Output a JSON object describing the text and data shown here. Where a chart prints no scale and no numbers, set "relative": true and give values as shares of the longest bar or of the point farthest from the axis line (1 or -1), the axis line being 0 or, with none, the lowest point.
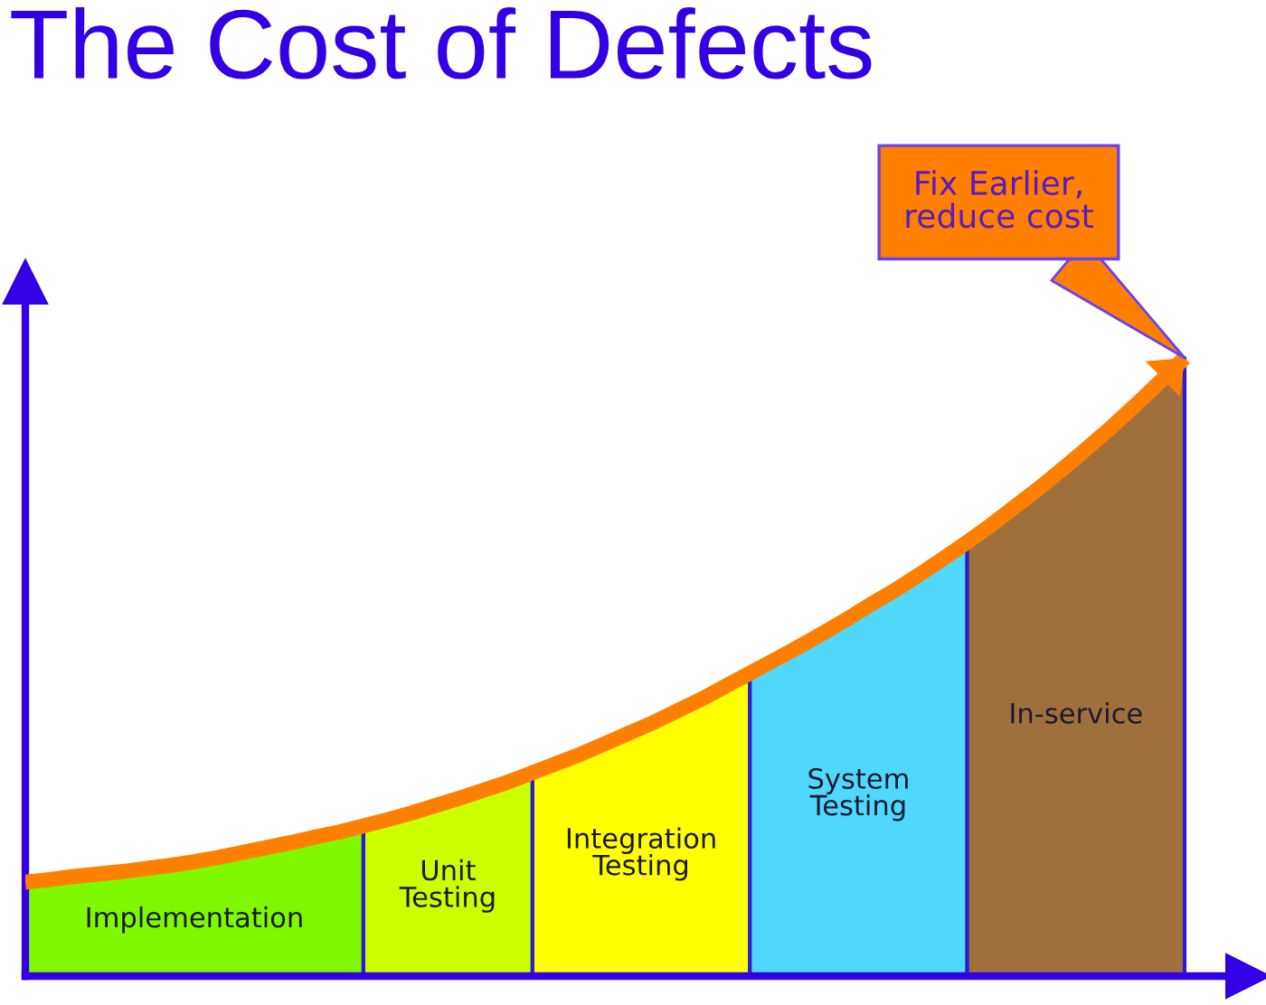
{
  "chart_data": {
    "type": "area",
    "title": "The Cost of Defects",
    "relative": true,
    "categories": [
      null,
      null,
      null,
      null,
      null,
      null,
      null,
      null,
      null,
      null,
      null,
      null,
      null,
      null,
      null,
      null,
      null,
      null,
      null,
      null,
      null,
      null,
      null,
      null,
      null,
      null,
      null,
      null,
      null,
      null,
      null,
      null,
      null,
      null,
      null,
      null,
      null,
      null,
      null,
      null,
      null,
      null,
      null,
      null,
      null,
      null,
      null,
      null,
      null
    ],
    "series": [
      {
        "name": "Implementation",
        "color": "#80f800",
        "values": [
          0.152,
          0.156,
          0.161,
          0.165,
          0.169,
          0.174,
          0.179,
          0.185,
          0.192,
          0.2,
          0.208,
          0.216,
          0.225,
          0.233,
          0.243,
          null,
          null,
          null,
          null,
          null,
          null,
          null,
          null,
          null,
          null,
          null,
          null,
          null,
          null,
          null,
          null,
          null,
          null,
          null,
          null,
          null,
          null,
          null,
          null,
          null,
          null,
          null,
          null,
          null,
          null,
          null,
          null,
          null,
          null
        ]
      },
      {
        "name": "Unit\nTesting",
        "color": "#ccff00",
        "values": [
          null,
          null,
          null,
          null,
          null,
          null,
          null,
          null,
          null,
          null,
          null,
          null,
          null,
          null,
          0.243,
          0.253,
          0.264,
          0.276,
          0.288,
          0.301,
          0.314,
          0.329,
          null,
          null,
          null,
          null,
          null,
          null,
          null,
          null,
          null,
          null,
          null,
          null,
          null,
          null,
          null,
          null,
          null,
          null,
          null,
          null,
          null,
          null,
          null,
          null,
          null,
          null,
          null
        ]
      },
      {
        "name": "Integration\nTesting",
        "color": "#ffff00",
        "values": [
          null,
          null,
          null,
          null,
          null,
          null,
          null,
          null,
          null,
          null,
          null,
          null,
          null,
          null,
          null,
          null,
          null,
          null,
          null,
          null,
          null,
          0.329,
          0.344,
          0.359,
          0.376,
          0.393,
          0.41,
          0.429,
          0.448,
          0.469,
          0.49,
          null,
          null,
          null,
          null,
          null,
          null,
          null,
          null,
          null,
          null,
          null,
          null,
          null,
          null,
          null,
          null,
          null,
          null
        ]
      },
      {
        "name": "System\nTesting",
        "color": "#50d8fc",
        "values": [
          null,
          null,
          null,
          null,
          null,
          null,
          null,
          null,
          null,
          null,
          null,
          null,
          null,
          null,
          null,
          null,
          null,
          null,
          null,
          null,
          null,
          null,
          null,
          null,
          null,
          null,
          null,
          null,
          null,
          null,
          0.49,
          0.511,
          0.532,
          0.554,
          0.577,
          0.601,
          0.624,
          0.649,
          0.675,
          0.702,
          null,
          null,
          null,
          null,
          null,
          null,
          null,
          null,
          null
        ]
      },
      {
        "name": "In-service",
        "color": "#a0703c",
        "values": [
          null,
          null,
          null,
          null,
          null,
          null,
          null,
          null,
          null,
          null,
          null,
          null,
          null,
          null,
          null,
          null,
          null,
          null,
          null,
          null,
          null,
          null,
          null,
          null,
          null,
          null,
          null,
          null,
          null,
          null,
          null,
          null,
          null,
          null,
          null,
          null,
          null,
          null,
          null,
          0.702,
          0.73,
          0.76,
          0.79,
          0.822,
          0.855,
          0.889,
          0.925,
          0.962,
          1.0
        ]
      },
      {
        "type": "line",
        "color": "#ff7f00",
        "values": [
          0.152,
          0.156,
          0.161,
          0.165,
          0.169,
          0.174,
          0.179,
          0.185,
          0.192,
          0.2,
          0.208,
          0.216,
          0.225,
          0.233,
          0.243,
          0.253,
          0.264,
          0.276,
          0.288,
          0.301,
          0.314,
          0.329,
          0.344,
          0.359,
          0.376,
          0.393,
          0.41,
          0.429,
          0.448,
          0.469,
          0.49,
          0.511,
          0.532,
          0.554,
          0.577,
          0.601,
          0.624,
          0.649,
          0.675,
          0.702,
          0.73,
          0.76,
          0.79,
          0.822,
          0.855,
          0.889,
          0.925,
          0.962,
          1.0
        ]
      }
    ],
    "annotations": [
      "Fix Earlier,\nreduce cost"
    ]
  }
}
